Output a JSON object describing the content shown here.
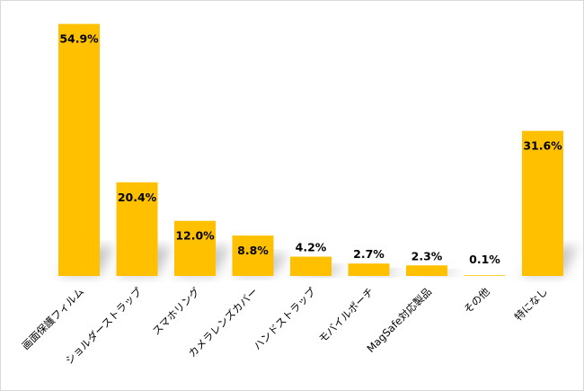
{
  "chart_data": {
    "type": "bar",
    "categories": [
      "画面保護フィルム",
      "ショルダーストラップ",
      "スマホリング",
      "カメラレンズカバー",
      "ハンドストラップ",
      "モバイルポーチ",
      "MagSafe対応製品",
      "その他",
      "特になし"
    ],
    "values": [
      54.9,
      20.4,
      12.0,
      8.8,
      4.2,
      2.7,
      2.3,
      0.1,
      31.6
    ],
    "data_labels": [
      "54.9%",
      "20.4%",
      "12.0%",
      "8.8%",
      "4.2%",
      "2.7%",
      "2.3%",
      "0.1%",
      "31.6%"
    ],
    "title": "",
    "xlabel": "",
    "ylabel": "",
    "ylim": [
      0,
      56
    ],
    "grid": false,
    "legend": "none",
    "colors": {
      "bar": "#FFC000",
      "shadow": "#bfbfbf",
      "text": "#000000"
    }
  }
}
